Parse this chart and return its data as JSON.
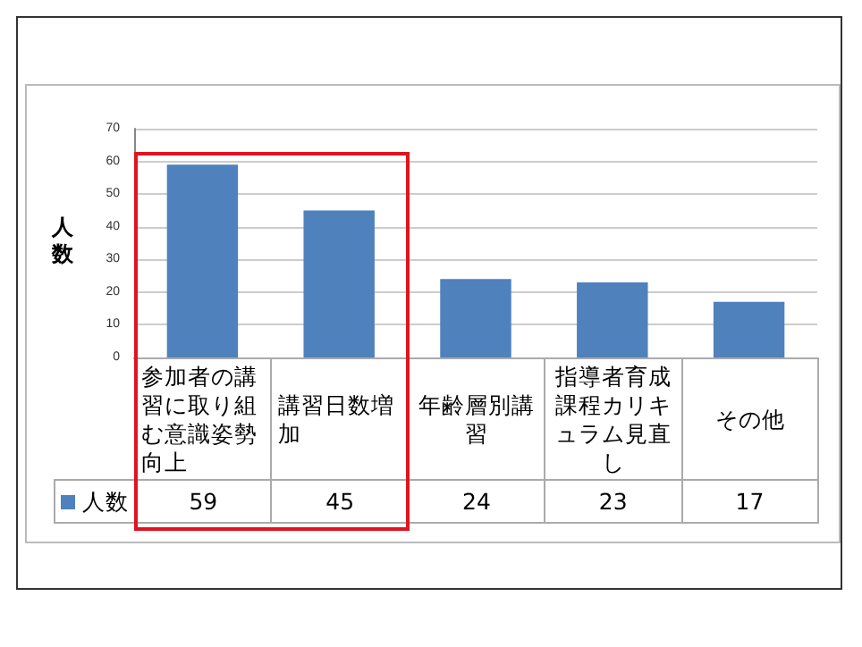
{
  "chart_data": {
    "type": "bar",
    "ylabel": "人数",
    "categories": [
      "参加者の講習に取り組む意識姿勢向上",
      "講習日数増加",
      "年齢層別講習",
      "指導者育成課程カリキュラム見直し",
      "その他"
    ],
    "series": [
      {
        "name": "人数",
        "color": "#4f81bd",
        "values": [
          59,
          45,
          24,
          23,
          17
        ]
      }
    ],
    "ylim": [
      0,
      70
    ],
    "yticks": [
      0,
      10,
      20,
      30,
      40,
      50,
      60,
      70
    ],
    "grid": "y",
    "legend": "bottom left",
    "data_labels": true
  }
}
